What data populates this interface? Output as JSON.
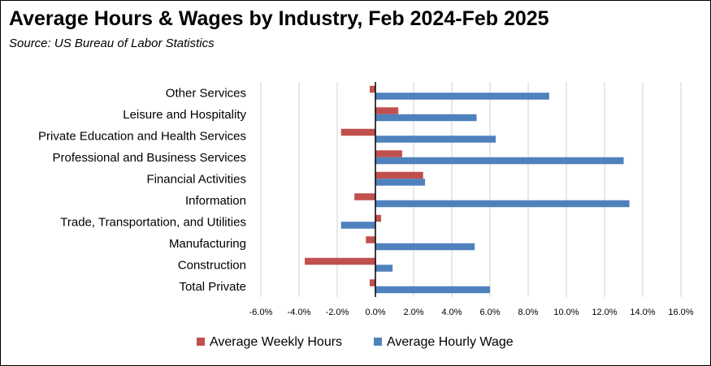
{
  "chart_data": {
    "type": "bar",
    "orientation": "horizontal",
    "title": "Average Hours & Wages by Industry, Feb 2024-Feb 2025",
    "subtitle": "Source:  US Bureau of Labor Statistics",
    "categories": [
      "Other Services",
      "Leisure and Hospitality",
      "Private Education and Health Services",
      "Professional and Business Services",
      "Financial Activities",
      "Information",
      "Trade, Transportation, and Utilities",
      "Manufacturing",
      "Construction",
      "Total Private"
    ],
    "series": [
      {
        "name": "Average Weekly Hours",
        "color": "#C0504D",
        "values": [
          -0.3,
          1.2,
          -1.8,
          1.4,
          2.5,
          -1.1,
          0.3,
          -0.5,
          -3.7,
          -0.3
        ]
      },
      {
        "name": "Average Hourly Wage",
        "color": "#4F81BD",
        "values": [
          9.1,
          5.3,
          6.3,
          13.0,
          2.6,
          13.3,
          -1.8,
          5.2,
          0.9,
          6.0
        ]
      }
    ],
    "xlim": [
      -6,
      16
    ],
    "xticks": [
      -6,
      -4,
      -2,
      0,
      2,
      4,
      6,
      8,
      10,
      12,
      14,
      16
    ],
    "xtick_labels": [
      "-6.0%",
      "-4.0%",
      "-2.0%",
      "0.0%",
      "2.0%",
      "4.0%",
      "6.0%",
      "8.0%",
      "10.0%",
      "12.0%",
      "14.0%",
      "16.0%"
    ],
    "xlabel": "",
    "ylabel": "",
    "grid": true,
    "legend_position": "bottom"
  }
}
